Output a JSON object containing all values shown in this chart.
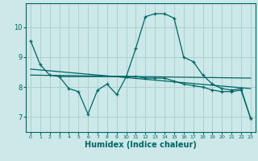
{
  "title": "",
  "xlabel": "Humidex (Indice chaleur)",
  "xlabel_fontsize": 7,
  "background_color": "#cce8e8",
  "grid_color": "#aacccc",
  "line_color": "#006666",
  "xlim": [
    -0.5,
    23.5
  ],
  "ylim": [
    6.5,
    10.8
  ],
  "yticks": [
    7,
    8,
    9,
    10
  ],
  "xticks": [
    0,
    1,
    2,
    3,
    4,
    5,
    6,
    7,
    8,
    9,
    10,
    11,
    12,
    13,
    14,
    15,
    16,
    17,
    18,
    19,
    20,
    21,
    22,
    23
  ],
  "series1_x": [
    0,
    1,
    2,
    3,
    10,
    11,
    12,
    13,
    14,
    15,
    16,
    17,
    18,
    19,
    20,
    21,
    22,
    23
  ],
  "series1_y": [
    9.55,
    8.75,
    8.4,
    8.35,
    8.35,
    9.3,
    10.35,
    10.45,
    10.45,
    10.3,
    9.0,
    8.85,
    8.4,
    8.1,
    7.95,
    7.9,
    7.95,
    6.95
  ],
  "series2_x": [
    3,
    4,
    5,
    6,
    7,
    8,
    9,
    10,
    11,
    12,
    13,
    14,
    15,
    16,
    17,
    18,
    19,
    20,
    21,
    22,
    23
  ],
  "series2_y": [
    8.35,
    7.95,
    7.85,
    7.1,
    7.9,
    8.1,
    7.75,
    8.35,
    8.35,
    8.3,
    8.3,
    8.3,
    8.2,
    8.1,
    8.05,
    8.0,
    7.9,
    7.85,
    7.85,
    7.9,
    6.95
  ],
  "series3_x": [
    0,
    23
  ],
  "series3_y": [
    8.6,
    7.95
  ],
  "series4_x": [
    0,
    23
  ],
  "series4_y": [
    8.4,
    8.3
  ]
}
